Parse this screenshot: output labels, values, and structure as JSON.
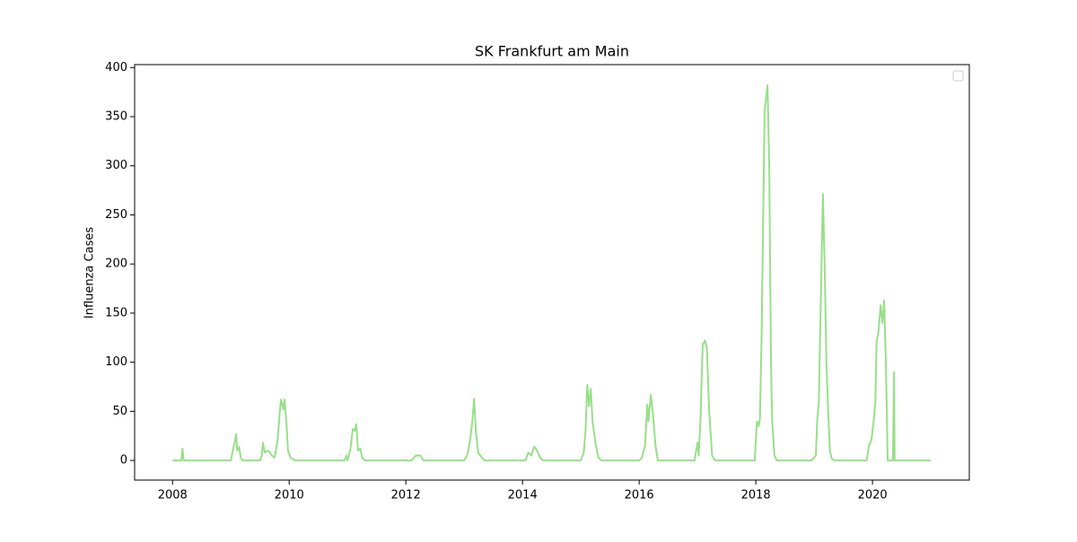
{
  "chart_data": {
    "type": "line",
    "title": "SK Frankfurt am Main",
    "ylabel": "Influenza Cases",
    "xlim": [
      2007.35,
      2021.66
    ],
    "ylim": [
      -20,
      403
    ],
    "xticks": [
      2008,
      2010,
      2012,
      2014,
      2016,
      2018,
      2020
    ],
    "yticks": [
      0,
      50,
      100,
      150,
      200,
      250,
      300,
      350,
      400
    ],
    "legend": "upper right",
    "series": [
      {
        "color": "#98df8a",
        "x": [
          2008.0,
          2008.15,
          2008.17,
          2008.19,
          2009.0,
          2009.05,
          2009.07,
          2009.09,
          2009.11,
          2009.14,
          2009.17,
          2009.2,
          2009.5,
          2009.53,
          2009.55,
          2009.58,
          2009.62,
          2009.66,
          2009.7,
          2009.75,
          2009.8,
          2009.84,
          2009.86,
          2009.9,
          2009.92,
          2009.95,
          2009.98,
          2010.02,
          2010.1,
          2010.95,
          2010.98,
          2011.0,
          2011.05,
          2011.09,
          2011.12,
          2011.15,
          2011.18,
          2011.22,
          2011.25,
          2011.3,
          2012.1,
          2012.17,
          2012.25,
          2012.3,
          2013.0,
          2013.05,
          2013.1,
          2013.14,
          2013.17,
          2013.2,
          2013.24,
          2013.3,
          2013.35,
          2014.05,
          2014.1,
          2014.15,
          2014.2,
          2014.25,
          2014.3,
          2014.35,
          2015.0,
          2015.05,
          2015.08,
          2015.11,
          2015.14,
          2015.17,
          2015.2,
          2015.25,
          2015.3,
          2015.35,
          2016.0,
          2016.05,
          2016.1,
          2016.14,
          2016.16,
          2016.2,
          2016.24,
          2016.28,
          2016.32,
          2016.95,
          2017.0,
          2017.02,
          2017.05,
          2017.09,
          2017.13,
          2017.16,
          2017.2,
          2017.25,
          2017.3,
          2017.98,
          2018.02,
          2018.05,
          2018.07,
          2018.1,
          2018.15,
          2018.2,
          2018.23,
          2018.26,
          2018.28,
          2018.32,
          2018.36,
          2018.95,
          2019.0,
          2019.03,
          2019.05,
          2019.08,
          2019.11,
          2019.15,
          2019.18,
          2019.21,
          2019.24,
          2019.27,
          2019.3,
          2019.35,
          2019.9,
          2019.94,
          2019.98,
          2020.02,
          2020.05,
          2020.07,
          2020.1,
          2020.14,
          2020.17,
          2020.2,
          2020.23,
          2020.26,
          2020.35,
          2020.37,
          2020.38,
          2021.0
        ],
        "values": [
          0,
          0,
          12,
          0,
          0,
          15,
          20,
          27,
          10,
          14,
          3,
          0,
          0,
          5,
          18,
          8,
          10,
          9,
          5,
          3,
          20,
          50,
          62,
          52,
          62,
          40,
          10,
          3,
          0,
          0,
          5,
          0,
          12,
          32,
          30,
          37,
          10,
          12,
          3,
          0,
          0,
          5,
          5,
          0,
          0,
          5,
          20,
          40,
          63,
          30,
          8,
          3,
          0,
          0,
          8,
          5,
          14,
          10,
          3,
          0,
          0,
          8,
          30,
          77,
          55,
          73,
          40,
          18,
          3,
          0,
          0,
          3,
          15,
          57,
          40,
          67,
          45,
          15,
          0,
          0,
          18,
          5,
          40,
          118,
          122,
          115,
          50,
          5,
          0,
          0,
          40,
          35,
          42,
          130,
          355,
          382,
          300,
          100,
          40,
          5,
          0,
          0,
          3,
          5,
          38,
          60,
          150,
          271,
          200,
          100,
          50,
          10,
          2,
          0,
          0,
          15,
          20,
          40,
          60,
          120,
          130,
          158,
          140,
          163,
          100,
          0,
          0,
          90,
          0,
          0
        ]
      }
    ]
  }
}
